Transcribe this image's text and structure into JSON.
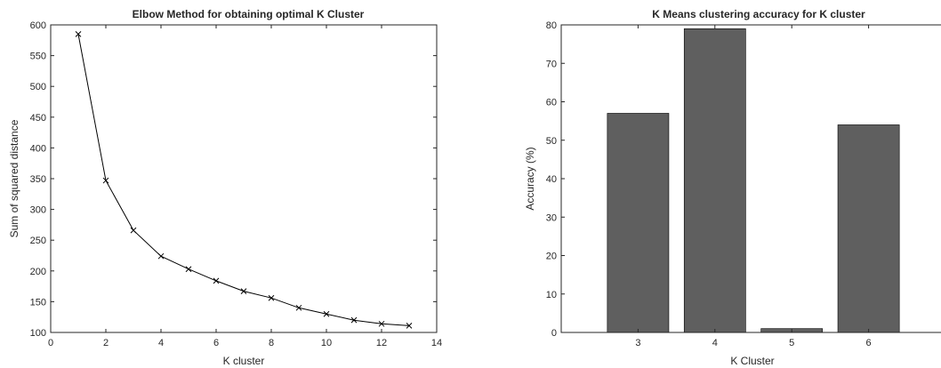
{
  "chart_data": [
    {
      "type": "line",
      "title": "Elbow Method for obtaining optimal K Cluster",
      "xlabel": "K cluster",
      "ylabel": "Sum of squared distance",
      "xlim": [
        0,
        14
      ],
      "ylim": [
        100,
        600
      ],
      "xticks": [
        0,
        2,
        4,
        6,
        8,
        10,
        12,
        14
      ],
      "yticks": [
        100,
        150,
        200,
        250,
        300,
        350,
        400,
        450,
        500,
        550,
        600
      ],
      "grid": false,
      "marker": "x",
      "line_color": "#000000",
      "x": [
        1,
        2,
        3,
        4,
        5,
        6,
        7,
        8,
        9,
        10,
        11,
        12,
        13
      ],
      "y": [
        585,
        347,
        266,
        224,
        203,
        184,
        167,
        156,
        140,
        130,
        120,
        114,
        111
      ]
    },
    {
      "type": "bar",
      "title": "K Means clustering accuracy for K cluster",
      "xlabel": "K Cluster",
      "ylabel": "Accuracy (%)",
      "ylim": [
        0,
        80
      ],
      "xlim": [
        2,
        7
      ],
      "yticks": [
        0,
        10,
        20,
        30,
        40,
        50,
        60,
        70,
        80
      ],
      "grid": false,
      "bar_color": "#5f5f5f",
      "categories": [
        "3",
        "4",
        "5",
        "6"
      ],
      "values": [
        57,
        79,
        1,
        54
      ]
    }
  ]
}
